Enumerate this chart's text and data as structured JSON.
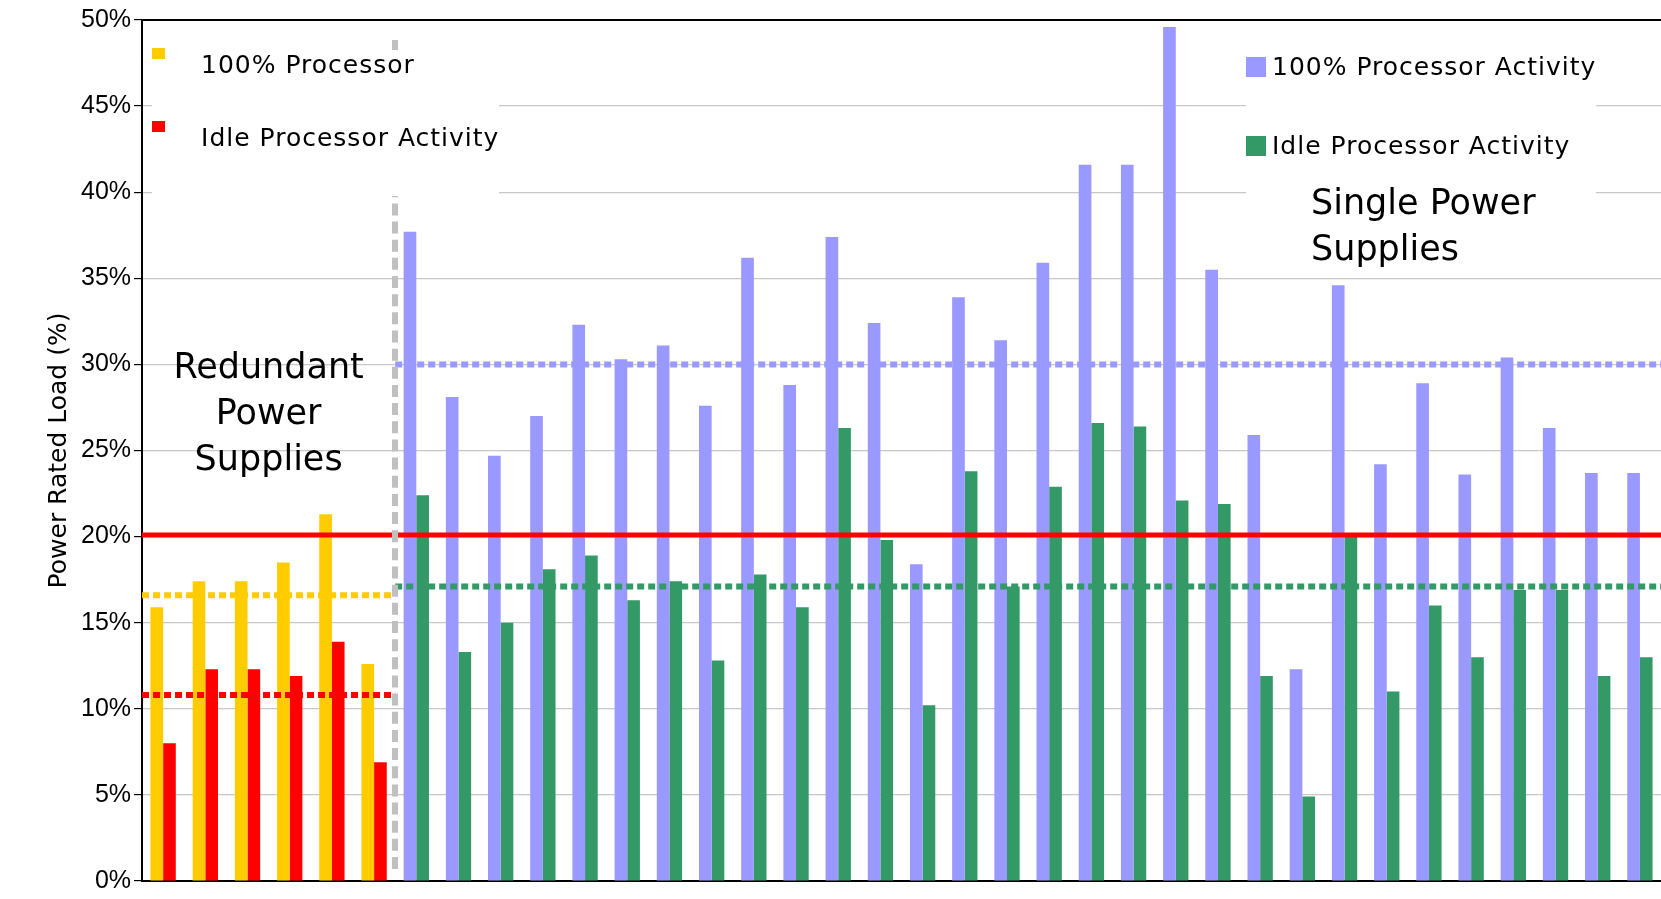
{
  "chart_data": {
    "type": "bar",
    "ylabel": "Power Rated Load (%)",
    "categories": [
      null,
      null,
      null,
      null,
      null,
      null,
      null,
      null,
      null,
      null,
      null,
      null,
      null,
      null,
      null,
      null,
      null,
      null,
      null,
      null,
      null,
      null,
      null,
      null,
      null,
      null,
      null,
      null,
      null,
      null,
      null,
      null,
      null,
      null,
      null,
      null
    ],
    "series": [
      {
        "name": "100% Processor",
        "color": "#ffcc00",
        "values": [
          15.9,
          17.4,
          17.4,
          18.5,
          21.3,
          12.6,
          null,
          null,
          null,
          null,
          null,
          null,
          null,
          null,
          null,
          null,
          null,
          null,
          null,
          null,
          null,
          null,
          null,
          null,
          null,
          null,
          null,
          null,
          null,
          null,
          null,
          null,
          null,
          null,
          null,
          null
        ]
      },
      {
        "name": "Idle Processor Activity",
        "color": "#ff0000",
        "values": [
          8.0,
          12.3,
          12.3,
          11.9,
          13.9,
          6.9,
          null,
          null,
          null,
          null,
          null,
          null,
          null,
          null,
          null,
          null,
          null,
          null,
          null,
          null,
          null,
          null,
          null,
          null,
          null,
          null,
          null,
          null,
          null,
          null,
          null,
          null,
          null,
          null,
          null,
          null
        ]
      },
      {
        "name": "100% Processor Activity",
        "color": "#9999ff",
        "values": [
          null,
          null,
          null,
          null,
          null,
          null,
          37.7,
          28.1,
          24.7,
          27.0,
          32.3,
          30.3,
          31.1,
          27.6,
          36.2,
          28.8,
          37.4,
          32.4,
          18.4,
          33.9,
          31.4,
          35.9,
          41.6,
          41.6,
          49.6,
          35.5,
          25.9,
          12.3,
          34.6,
          24.2,
          28.9,
          23.6,
          30.4,
          26.3,
          23.7,
          23.7
        ]
      },
      {
        "name": "Idle Processor Activity",
        "color": "#339966",
        "values": [
          null,
          null,
          null,
          null,
          null,
          null,
          22.4,
          13.3,
          15.0,
          18.1,
          18.9,
          16.3,
          17.4,
          12.8,
          17.8,
          15.9,
          26.3,
          19.8,
          10.2,
          23.8,
          17.1,
          22.9,
          26.6,
          26.4,
          22.1,
          21.9,
          11.9,
          4.9,
          20.0,
          11.0,
          16.0,
          13.0,
          16.9,
          16.9,
          11.9,
          13.0
        ]
      }
    ],
    "ylim": [
      0,
      50
    ],
    "yticks": [
      {
        "value": 0,
        "label": "0%"
      },
      {
        "value": 5,
        "label": "5%"
      },
      {
        "value": 10,
        "label": "10%"
      },
      {
        "value": 15,
        "label": "15%"
      },
      {
        "value": 20,
        "label": "20%"
      },
      {
        "value": 25,
        "label": "25%"
      },
      {
        "value": 30,
        "label": "30%"
      },
      {
        "value": 35,
        "label": "35%"
      },
      {
        "value": 40,
        "label": "40%"
      },
      {
        "value": 45,
        "label": "45%"
      },
      {
        "value": 50,
        "label": "50%"
      }
    ],
    "grid": "y",
    "legend": "top",
    "ref_lines": [
      {
        "axis": "y",
        "value": 16.6,
        "color": "#ffcc00",
        "line_style": "dotted"
      },
      {
        "axis": "y",
        "value": 10.8,
        "color": "#ff0000",
        "line_style": "dotted"
      },
      {
        "axis": "y",
        "value": 30.0,
        "color": "#9999ff",
        "line_style": "dotted"
      },
      {
        "axis": "y",
        "value": 17.1,
        "color": "#339966",
        "line_style": "dotted"
      },
      {
        "axis": "y",
        "value": 20.1,
        "color": "#ff0000",
        "line_style": "solid"
      }
    ],
    "annotations": [
      "Redundant Power Supplies",
      "Single Power Supplies"
    ]
  }
}
